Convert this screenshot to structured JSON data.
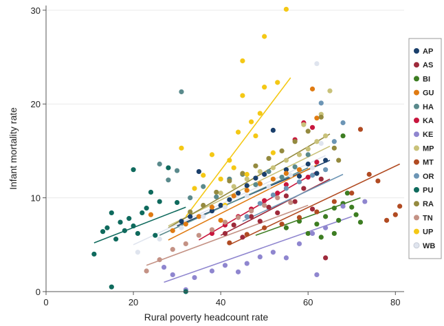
{
  "chart_data": {
    "type": "scatter",
    "xlabel": "Rural poverty headcount rate",
    "ylabel": "Infant mortality rate",
    "xlim": [
      0,
      82
    ],
    "ylim": [
      0,
      30.5
    ],
    "xticks": [
      "0",
      "20",
      "40",
      "60",
      "80"
    ],
    "yticks": [
      "0",
      "10",
      "20",
      "30"
    ],
    "grid": true,
    "legend_position": "right",
    "series": [
      {
        "name": "AP",
        "color": "#1a3f6b",
        "fit": [
          [
            30,
            7.0
          ],
          [
            65,
            14.0
          ]
        ],
        "points": [
          [
            31,
            7.5
          ],
          [
            33,
            8.0
          ],
          [
            35,
            12.8
          ],
          [
            38,
            8.6
          ],
          [
            40,
            9.2
          ],
          [
            42,
            9.8
          ],
          [
            44,
            10.5
          ],
          [
            46,
            11.3
          ],
          [
            48,
            12.1
          ],
          [
            50,
            12.5
          ],
          [
            52,
            17.2
          ],
          [
            55,
            13.0
          ],
          [
            58,
            12.3
          ],
          [
            60,
            13.6
          ],
          [
            62,
            12.6
          ],
          [
            64,
            14.0
          ]
        ]
      },
      {
        "name": "AS",
        "color": "#9e2a3b",
        "fit": [
          [
            40,
            6.0
          ],
          [
            65,
            12.0
          ]
        ],
        "points": [
          [
            41,
            6.2
          ],
          [
            43,
            7.1
          ],
          [
            45,
            5.8
          ],
          [
            47,
            8.0
          ],
          [
            49,
            7.5
          ],
          [
            51,
            9.0
          ],
          [
            53,
            8.4
          ],
          [
            55,
            10.2
          ],
          [
            57,
            9.6
          ],
          [
            59,
            11.0
          ],
          [
            61,
            8.8
          ],
          [
            63,
            12.0
          ],
          [
            64,
            3.6
          ]
        ]
      },
      {
        "name": "BI",
        "color": "#3d7d22",
        "fit": [
          [
            48,
            6.0
          ],
          [
            72,
            10.0
          ]
        ],
        "points": [
          [
            55,
            6.8
          ],
          [
            58,
            7.5
          ],
          [
            60,
            6.2
          ],
          [
            62,
            7.2
          ],
          [
            64,
            8.0
          ],
          [
            66,
            8.9
          ],
          [
            67,
            7.6
          ],
          [
            68,
            9.4
          ],
          [
            69,
            10.5
          ],
          [
            70,
            9.0
          ],
          [
            71,
            8.2
          ],
          [
            72,
            7.4
          ],
          [
            66,
            6.2
          ],
          [
            63,
            5.8
          ],
          [
            68,
            16.6
          ]
        ]
      },
      {
        "name": "GU",
        "color": "#e07b12",
        "fit": [
          [
            28,
            5.5
          ],
          [
            62,
            13.5
          ]
        ],
        "points": [
          [
            24,
            8.2
          ],
          [
            29,
            6.5
          ],
          [
            32,
            7.2
          ],
          [
            35,
            8.0
          ],
          [
            38,
            9.0
          ],
          [
            40,
            7.6
          ],
          [
            43,
            10.2
          ],
          [
            46,
            10.8
          ],
          [
            49,
            11.5
          ],
          [
            52,
            12.0
          ],
          [
            55,
            12.6
          ],
          [
            58,
            13.0
          ],
          [
            61,
            21.6
          ],
          [
            62,
            18.5
          ]
        ]
      },
      {
        "name": "HA",
        "color": "#5a8a8c",
        "fit": [
          [
            26,
            6.0
          ],
          [
            60,
            13.2
          ]
        ],
        "points": [
          [
            26,
            13.6
          ],
          [
            28,
            11.9
          ],
          [
            30,
            12.9
          ],
          [
            31,
            21.3
          ],
          [
            33,
            10.0
          ],
          [
            36,
            11.2
          ],
          [
            39,
            10.1
          ],
          [
            42,
            12.0
          ],
          [
            45,
            12.5
          ],
          [
            48,
            11.4
          ],
          [
            51,
            12.8
          ],
          [
            54,
            12.2
          ],
          [
            57,
            13.3
          ],
          [
            60,
            14.6
          ]
        ]
      },
      {
        "name": "KA",
        "color": "#c8163d",
        "fit": [
          [
            35,
            5.5
          ],
          [
            62,
            12.8
          ]
        ],
        "points": [
          [
            38,
            6.2
          ],
          [
            41,
            7.1
          ],
          [
            44,
            8.0
          ],
          [
            47,
            8.8
          ],
          [
            50,
            9.7
          ],
          [
            53,
            10.5
          ],
          [
            55,
            11.4
          ],
          [
            57,
            16.2
          ],
          [
            59,
            18.0
          ],
          [
            61,
            17.5
          ],
          [
            62,
            13.8
          ],
          [
            60,
            12.2
          ]
        ]
      },
      {
        "name": "KE",
        "color": "#8f86cf",
        "fit": [
          [
            27,
            1.0
          ],
          [
            70,
            8.0
          ]
        ],
        "points": [
          [
            27,
            2.6
          ],
          [
            29,
            1.8
          ],
          [
            32,
            0.2
          ],
          [
            34,
            1.5
          ],
          [
            38,
            2.2
          ],
          [
            41,
            2.8
          ],
          [
            44,
            2.1
          ],
          [
            46,
            3.0
          ],
          [
            49,
            3.7
          ],
          [
            52,
            4.2
          ],
          [
            55,
            3.6
          ],
          [
            58,
            5.1
          ],
          [
            61,
            6.2
          ],
          [
            64,
            6.8
          ],
          [
            68,
            9.1
          ],
          [
            73,
            9.6
          ],
          [
            62,
            1.8
          ]
        ]
      },
      {
        "name": "MP",
        "color": "#c9c27a",
        "fit": [
          [
            28,
            7.0
          ],
          [
            65,
            15.5
          ]
        ],
        "points": [
          [
            40,
            10.5
          ],
          [
            43,
            11.2
          ],
          [
            46,
            12.0
          ],
          [
            49,
            12.8
          ],
          [
            52,
            13.2
          ],
          [
            55,
            14.0
          ],
          [
            58,
            14.6
          ],
          [
            60,
            15.2
          ],
          [
            62,
            16.0
          ],
          [
            64,
            16.6
          ],
          [
            65,
            21.4
          ],
          [
            63,
            18.9
          ],
          [
            59,
            17.8
          ]
        ]
      },
      {
        "name": "MT",
        "color": "#b14b22",
        "fit": [
          [
            42,
            5.0
          ],
          [
            81,
            13.6
          ]
        ],
        "points": [
          [
            42,
            5.2
          ],
          [
            46,
            6.1
          ],
          [
            50,
            6.8
          ],
          [
            54,
            7.2
          ],
          [
            58,
            7.9
          ],
          [
            62,
            8.5
          ],
          [
            66,
            9.6
          ],
          [
            70,
            10.5
          ],
          [
            72,
            17.3
          ],
          [
            74,
            12.5
          ],
          [
            76,
            11.8
          ],
          [
            78,
            7.6
          ],
          [
            80,
            8.2
          ],
          [
            81,
            9.1
          ]
        ]
      },
      {
        "name": "OR",
        "color": "#6c95b5",
        "fit": [
          [
            45,
            7.5
          ],
          [
            68,
            12.5
          ]
        ],
        "points": [
          [
            46,
            8.0
          ],
          [
            49,
            9.4
          ],
          [
            52,
            10.3
          ],
          [
            55,
            11.0
          ],
          [
            58,
            11.7
          ],
          [
            61,
            12.4
          ],
          [
            64,
            13.0
          ],
          [
            66,
            16.0
          ],
          [
            68,
            18.0
          ],
          [
            63,
            20.1
          ]
        ]
      },
      {
        "name": "PU",
        "color": "#0f6a5d",
        "fit": [
          [
            11,
            5.2
          ],
          [
            32,
            9.0
          ]
        ],
        "points": [
          [
            11,
            4.0
          ],
          [
            13,
            6.4
          ],
          [
            14,
            6.8
          ],
          [
            15,
            8.4
          ],
          [
            16,
            5.6
          ],
          [
            17,
            7.4
          ],
          [
            18,
            6.5
          ],
          [
            19,
            7.8
          ],
          [
            20,
            7.0
          ],
          [
            20,
            13.0
          ],
          [
            21,
            6.2
          ],
          [
            22,
            8.4
          ],
          [
            23,
            8.9
          ],
          [
            25,
            6.0
          ],
          [
            26,
            9.6
          ],
          [
            28,
            13.2
          ],
          [
            30,
            9.5
          ],
          [
            32,
            0.0
          ],
          [
            15,
            0.5
          ],
          [
            24,
            10.6
          ]
        ]
      },
      {
        "name": "RA",
        "color": "#948a3f",
        "fit": [
          [
            28,
            6.8
          ],
          [
            65,
            16.8
          ]
        ],
        "points": [
          [
            33,
            8.5
          ],
          [
            36,
            9.2
          ],
          [
            39,
            10.6
          ],
          [
            42,
            11.8
          ],
          [
            45,
            12.6
          ],
          [
            48,
            13.4
          ],
          [
            51,
            14.2
          ],
          [
            54,
            15.0
          ],
          [
            57,
            16.0
          ],
          [
            60,
            17.1
          ],
          [
            63,
            18.6
          ],
          [
            66,
            15.3
          ],
          [
            67,
            14.0
          ]
        ]
      },
      {
        "name": "TN",
        "color": "#c49285",
        "fit": [
          [
            23,
            2.8
          ],
          [
            60,
            9.2
          ]
        ],
        "points": [
          [
            23,
            2.2
          ],
          [
            26,
            3.4
          ],
          [
            29,
            4.5
          ],
          [
            32,
            5.1
          ],
          [
            35,
            6.0
          ],
          [
            38,
            6.6
          ],
          [
            41,
            7.4
          ],
          [
            44,
            7.9
          ],
          [
            47,
            8.6
          ],
          [
            50,
            9.2
          ],
          [
            53,
            10.0
          ],
          [
            56,
            9.5
          ]
        ]
      },
      {
        "name": "UP",
        "color": "#f4c815",
        "fit": [
          [
            32,
            8.0
          ],
          [
            56,
            22.8
          ]
        ],
        "points": [
          [
            31,
            15.3
          ],
          [
            34,
            11.0
          ],
          [
            36,
            12.4
          ],
          [
            38,
            14.6
          ],
          [
            40,
            12.0
          ],
          [
            41,
            9.2
          ],
          [
            42,
            14.0
          ],
          [
            43,
            13.2
          ],
          [
            44,
            17.0
          ],
          [
            45,
            20.9
          ],
          [
            45,
            24.6
          ],
          [
            47,
            18.1
          ],
          [
            48,
            16.6
          ],
          [
            49,
            19.0
          ],
          [
            50,
            21.8
          ],
          [
            50,
            27.2
          ],
          [
            53,
            22.3
          ],
          [
            55,
            30.1
          ],
          [
            52,
            14.8
          ],
          [
            46,
            12.5
          ]
        ]
      },
      {
        "name": "WB",
        "color": "#dfe4ee",
        "fit": [
          [
            20,
            5.0
          ],
          [
            64,
            14.5
          ]
        ],
        "points": [
          [
            21,
            4.2
          ],
          [
            26,
            5.6
          ],
          [
            31,
            6.8
          ],
          [
            36,
            8.0
          ],
          [
            41,
            9.0
          ],
          [
            46,
            10.2
          ],
          [
            51,
            11.2
          ],
          [
            56,
            12.4
          ],
          [
            61,
            13.2
          ],
          [
            62,
            24.3
          ],
          [
            63,
            15.8
          ]
        ]
      }
    ]
  }
}
